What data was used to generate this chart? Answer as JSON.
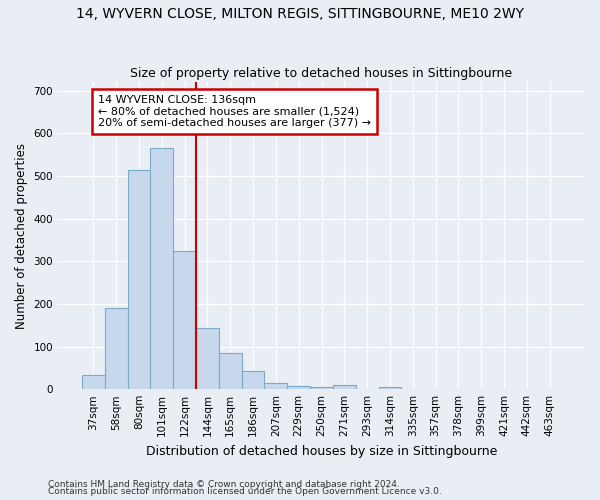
{
  "title1": "14, WYVERN CLOSE, MILTON REGIS, SITTINGBOURNE, ME10 2WY",
  "title2": "Size of property relative to detached houses in Sittingbourne",
  "xlabel": "Distribution of detached houses by size in Sittingbourne",
  "ylabel": "Number of detached properties",
  "categories": [
    "37sqm",
    "58sqm",
    "80sqm",
    "101sqm",
    "122sqm",
    "144sqm",
    "165sqm",
    "186sqm",
    "207sqm",
    "229sqm",
    "250sqm",
    "271sqm",
    "293sqm",
    "314sqm",
    "335sqm",
    "357sqm",
    "378sqm",
    "399sqm",
    "421sqm",
    "442sqm",
    "463sqm"
  ],
  "values": [
    33,
    190,
    515,
    565,
    325,
    143,
    85,
    42,
    14,
    8,
    6,
    10,
    0,
    6,
    0,
    0,
    0,
    0,
    0,
    0,
    0
  ],
  "bar_color": "#c8d8ec",
  "bar_edge_color": "#7aaac8",
  "vline_color": "#cc0000",
  "annotation_text": "14 WYVERN CLOSE: 136sqm\n← 80% of detached houses are smaller (1,524)\n20% of semi-detached houses are larger (377) →",
  "annotation_box_color": "#ffffff",
  "annotation_box_edge": "#cc0000",
  "ylim": [
    0,
    720
  ],
  "yticks": [
    0,
    100,
    200,
    300,
    400,
    500,
    600,
    700
  ],
  "footer1": "Contains HM Land Registry data © Crown copyright and database right 2024.",
  "footer2": "Contains public sector information licensed under the Open Government Licence v3.0.",
  "bg_color": "#e8eef4",
  "plot_bg_color": "#e8eef4",
  "grid_color": "#ffffff",
  "title1_fontsize": 10,
  "title2_fontsize": 9
}
